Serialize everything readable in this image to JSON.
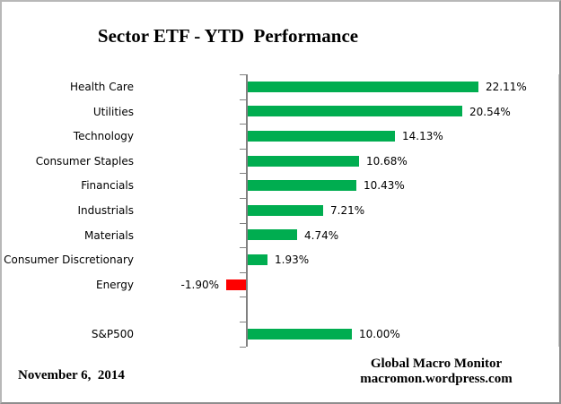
{
  "title": "Sector ETF - YTD  Performance",
  "footer": {
    "date": "November 6,  2014",
    "source_line1": "Global Macro Monitor",
    "source_line2": "macromon.wordpress.com"
  },
  "chart_data": {
    "type": "bar",
    "orientation": "horizontal",
    "title": "Sector ETF - YTD  Performance",
    "categories": [
      "Health Care",
      "Utilities",
      "Technology",
      "Consumer Staples",
      "Financials",
      "Industrials",
      "Materials",
      "Consumer Discretionary",
      "Energy",
      "",
      "S&P500"
    ],
    "values": [
      22.11,
      20.54,
      14.13,
      10.68,
      10.43,
      7.21,
      4.74,
      1.93,
      -1.9,
      null,
      10.0
    ],
    "labels": [
      "22.11%",
      "20.54%",
      "14.13%",
      "10.68%",
      "10.43%",
      "7.21%",
      "4.74%",
      "1.93%",
      "-1.90%",
      null,
      "10.00%"
    ],
    "xlabel": "",
    "ylabel": "",
    "xlim": [
      -10,
      30
    ],
    "grid": false,
    "legend": "none",
    "value_labels": true,
    "colors": {
      "positive_bar": "#00AD50",
      "negative_bar": "#FE0000",
      "axis": "#808080",
      "plot_border": "#c6c6c6",
      "text": "#000000"
    }
  }
}
